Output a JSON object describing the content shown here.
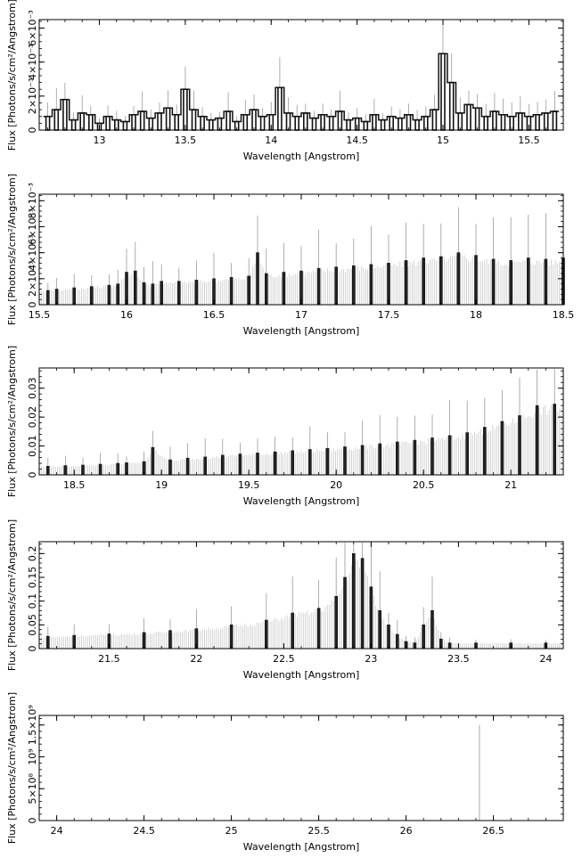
{
  "figure": {
    "panels": [
      {
        "xlabel": "Wavelength [Angstrom]",
        "ylabel": "Flux [Photons/s/cm²/Angstrom]"
      },
      {
        "xlabel": "Wavelength [Angstrom]",
        "ylabel": "Flux [Photons/s/cm²/Angstrom]"
      },
      {
        "xlabel": "Wavelength [Angstrom]",
        "ylabel": "Flux [Photons/s/cm²/Angstrom]"
      },
      {
        "xlabel": "Wavelength [Angstrom]",
        "ylabel": "Flux [Photons/s/cm²/Angstrom]"
      },
      {
        "xlabel": "Wavelength [Angstrom]",
        "ylabel": "Flux [Photons/s/cm²/Angstrom]"
      }
    ]
  },
  "chart_data": [
    {
      "type": "bar",
      "xlabel": "Wavelength [Angstrom]",
      "ylabel": "Flux [Photons/s/cm²/Angstrom]",
      "xlim": [
        12.65,
        15.7
      ],
      "ylim": [
        0,
        0.0065
      ],
      "xticks": [
        13,
        13.5,
        14,
        14.5,
        15,
        15.5
      ],
      "xtick_labels": [
        "13",
        "13.5",
        "14",
        "14.5",
        "15",
        "15.5"
      ],
      "yticks": [
        0,
        0.002,
        0.004,
        0.006
      ],
      "ytick_labels": [
        "0",
        "2×10⁻³",
        "4×10⁻³",
        "6×10⁻³"
      ],
      "series": [
        {
          "x": [
            12.7,
            12.75,
            12.8,
            12.85,
            12.9,
            12.95,
            13.0,
            13.05,
            13.1,
            13.15,
            13.2,
            13.25,
            13.3,
            13.35,
            13.4,
            13.45,
            13.5,
            13.55,
            13.6,
            13.65,
            13.7,
            13.75,
            13.8,
            13.85,
            13.9,
            13.95,
            14.0,
            14.05,
            14.1,
            14.15,
            14.2,
            14.25,
            14.3,
            14.35,
            14.4,
            14.45,
            14.5,
            14.55,
            14.6,
            14.65,
            14.7,
            14.75,
            14.8,
            14.85,
            14.9,
            14.95,
            15.0,
            15.05,
            15.1,
            15.15,
            15.2,
            15.25,
            15.3,
            15.35,
            15.4,
            15.45,
            15.5,
            15.55,
            15.6,
            15.65
          ],
          "values": [
            0.0008,
            0.0012,
            0.0018,
            0.0006,
            0.001,
            0.0009,
            0.0004,
            0.0008,
            0.0006,
            0.0005,
            0.0009,
            0.0011,
            0.0007,
            0.001,
            0.0013,
            0.0009,
            0.0024,
            0.0012,
            0.0008,
            0.0006,
            0.0007,
            0.0011,
            0.0005,
            0.0009,
            0.0012,
            0.0008,
            0.0009,
            0.0025,
            0.001,
            0.0008,
            0.001,
            0.0007,
            0.0009,
            0.0008,
            0.0011,
            0.0006,
            0.0007,
            0.0005,
            0.0009,
            0.0006,
            0.0008,
            0.0007,
            0.0009,
            0.0006,
            0.0008,
            0.0012,
            0.0045,
            0.0028,
            0.001,
            0.0015,
            0.0013,
            0.0008,
            0.0011,
            0.0009,
            0.0008,
            0.001,
            0.0008,
            0.0009,
            0.001,
            0.0011
          ]
        }
      ]
    },
    {
      "type": "bar",
      "xlabel": "Wavelength [Angstrom]",
      "ylabel": "Flux [Photons/s/cm²/Angstrom]",
      "xlim": [
        15.5,
        18.5
      ],
      "ylim": [
        0,
        0.0085
      ],
      "xticks": [
        15.5,
        16,
        16.5,
        17,
        17.5,
        18,
        18.5
      ],
      "xtick_labels": [
        "15.5",
        "16",
        "16.5",
        "17",
        "17.5",
        "18",
        "18.5"
      ],
      "yticks": [
        0,
        0.002,
        0.004,
        0.006,
        0.008
      ],
      "ytick_labels": [
        "0",
        "2×10⁻³",
        "4×10⁻³",
        "6×10⁻³",
        "8×10⁻³"
      ],
      "series": [
        {
          "x": [
            15.55,
            15.6,
            15.7,
            15.8,
            15.9,
            15.95,
            16.0,
            16.05,
            16.1,
            16.15,
            16.2,
            16.3,
            16.4,
            16.5,
            16.6,
            16.7,
            16.75,
            16.8,
            16.9,
            17.0,
            17.1,
            17.2,
            17.3,
            17.4,
            17.5,
            17.6,
            17.7,
            17.8,
            17.9,
            18.0,
            18.1,
            18.2,
            18.3,
            18.4,
            18.5
          ],
          "values": [
            0.0011,
            0.0012,
            0.0013,
            0.0014,
            0.0015,
            0.0016,
            0.0025,
            0.0026,
            0.0017,
            0.0016,
            0.0018,
            0.0018,
            0.0019,
            0.002,
            0.0021,
            0.0022,
            0.004,
            0.0024,
            0.0025,
            0.0026,
            0.0028,
            0.0029,
            0.003,
            0.0031,
            0.0032,
            0.0034,
            0.0036,
            0.0037,
            0.004,
            0.0038,
            0.0035,
            0.0034,
            0.0036,
            0.0035,
            0.0036
          ]
        }
      ]
    },
    {
      "type": "bar",
      "xlabel": "Wavelength [Angstrom]",
      "ylabel": "Flux [Photons/s/cm²/Angstrom]",
      "xlim": [
        18.3,
        21.3
      ],
      "ylim": [
        0,
        0.037
      ],
      "xticks": [
        18.5,
        19,
        19.5,
        20,
        20.5,
        21
      ],
      "xtick_labels": [
        "18.5",
        "19",
        "19.5",
        "20",
        "20.5",
        "21"
      ],
      "yticks": [
        0,
        0.01,
        0.02,
        0.03
      ],
      "ytick_labels": [
        "0",
        "0.01",
        "0.02",
        "0.03"
      ],
      "series": [
        {
          "x": [
            18.35,
            18.45,
            18.55,
            18.65,
            18.75,
            18.8,
            18.9,
            18.95,
            19.05,
            19.15,
            19.25,
            19.35,
            19.45,
            19.55,
            19.65,
            19.75,
            19.85,
            19.95,
            20.05,
            20.15,
            20.25,
            20.35,
            20.45,
            20.55,
            20.65,
            20.75,
            20.85,
            20.95,
            21.05,
            21.15,
            21.25
          ],
          "values": [
            0.003,
            0.0032,
            0.0034,
            0.0037,
            0.004,
            0.0042,
            0.0046,
            0.0095,
            0.0052,
            0.0058,
            0.0062,
            0.0068,
            0.0072,
            0.0076,
            0.008,
            0.0084,
            0.0088,
            0.0092,
            0.0097,
            0.0102,
            0.0108,
            0.0114,
            0.012,
            0.0128,
            0.0136,
            0.0146,
            0.0165,
            0.0185,
            0.0205,
            0.024,
            0.0245
          ]
        }
      ]
    },
    {
      "type": "bar",
      "xlabel": "Wavelength [Angstrom]",
      "ylabel": "Flux [Photons/s/cm²/Angstrom]",
      "xlim": [
        21.1,
        24.1
      ],
      "ylim": [
        0,
        0.225
      ],
      "xticks": [
        21.5,
        22,
        22.5,
        23,
        23.5,
        24
      ],
      "xtick_labels": [
        "21.5",
        "22",
        "22.5",
        "23",
        "23.5",
        "24"
      ],
      "yticks": [
        0,
        0.05,
        0.1,
        0.15,
        0.2
      ],
      "ytick_labels": [
        "0",
        "0.05",
        "0.1",
        "0.15",
        "0.2"
      ],
      "series": [
        {
          "x": [
            21.15,
            21.3,
            21.5,
            21.7,
            21.85,
            22.0,
            22.2,
            22.4,
            22.55,
            22.7,
            22.8,
            22.85,
            22.9,
            22.95,
            23.0,
            23.05,
            23.1,
            23.15,
            23.2,
            23.25,
            23.3,
            23.35,
            23.4,
            23.45,
            23.6,
            23.8,
            24.0
          ],
          "values": [
            0.026,
            0.028,
            0.031,
            0.034,
            0.038,
            0.042,
            0.05,
            0.06,
            0.075,
            0.085,
            0.11,
            0.15,
            0.2,
            0.19,
            0.13,
            0.08,
            0.05,
            0.03,
            0.015,
            0.012,
            0.05,
            0.08,
            0.02,
            0.012,
            0.012,
            0.012,
            0.012
          ]
        }
      ]
    },
    {
      "type": "bar",
      "xlabel": "Wavelength [Angstrom]",
      "ylabel": "Flux [Photons/s/cm²/Angstrom]",
      "xlim": [
        23.9,
        26.9
      ],
      "ylim": [
        0,
        1650000000
      ],
      "xticks": [
        24,
        24.5,
        25,
        25.5,
        26,
        26.5
      ],
      "xtick_labels": [
        "24",
        "24.5",
        "25",
        "25.5",
        "26",
        "26.5"
      ],
      "yticks": [
        0,
        500000000,
        1000000000,
        1500000000
      ],
      "ytick_labels": [
        "0",
        "5×10⁸",
        "10⁹",
        "1.5×10⁹"
      ],
      "series": [
        {
          "x": [
            26.42
          ],
          "values": [
            1500000000
          ]
        }
      ]
    }
  ]
}
